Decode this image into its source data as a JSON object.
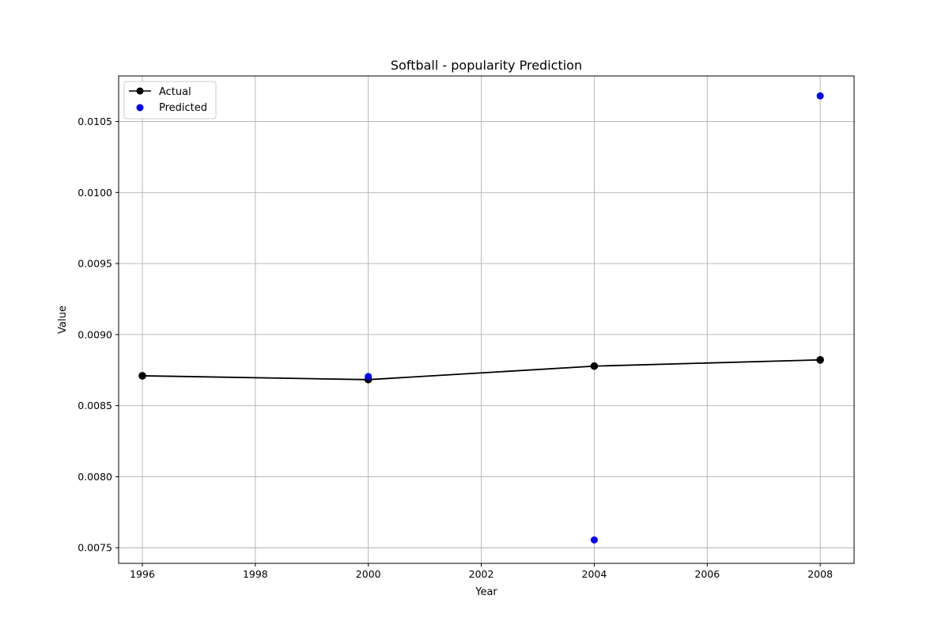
{
  "chart_data": {
    "type": "line",
    "title": "Softball - popularity Prediction",
    "xlabel": "Year",
    "ylabel": "Value",
    "xlim": [
      1995.58,
      2008.6
    ],
    "ylim": [
      0.00739,
      0.01082
    ],
    "xticks": [
      1996,
      1998,
      2000,
      2002,
      2004,
      2006,
      2008
    ],
    "xtick_labels": [
      "1996",
      "1998",
      "2000",
      "2002",
      "2004",
      "2006",
      "2008"
    ],
    "yticks": [
      0.0075,
      0.008,
      0.0085,
      0.009,
      0.0095,
      0.01,
      0.0105
    ],
    "ytick_labels": [
      "0.0075",
      "0.0080",
      "0.0085",
      "0.0090",
      "0.0095",
      "0.0100",
      "0.0105"
    ],
    "grid": true,
    "legend_position": "top-left",
    "series": [
      {
        "name": "Actual",
        "kind": "line-with-markers",
        "color": "#000000",
        "x": [
          1996,
          2000,
          2004,
          2008
        ],
        "y": [
          0.00871,
          0.008683,
          0.008778,
          0.008822
        ]
      },
      {
        "name": "Predicted",
        "kind": "scatter",
        "color": "#0000ff",
        "x": [
          2000,
          2004,
          2008
        ],
        "y": [
          0.008705,
          0.007555,
          0.01068
        ]
      }
    ]
  }
}
